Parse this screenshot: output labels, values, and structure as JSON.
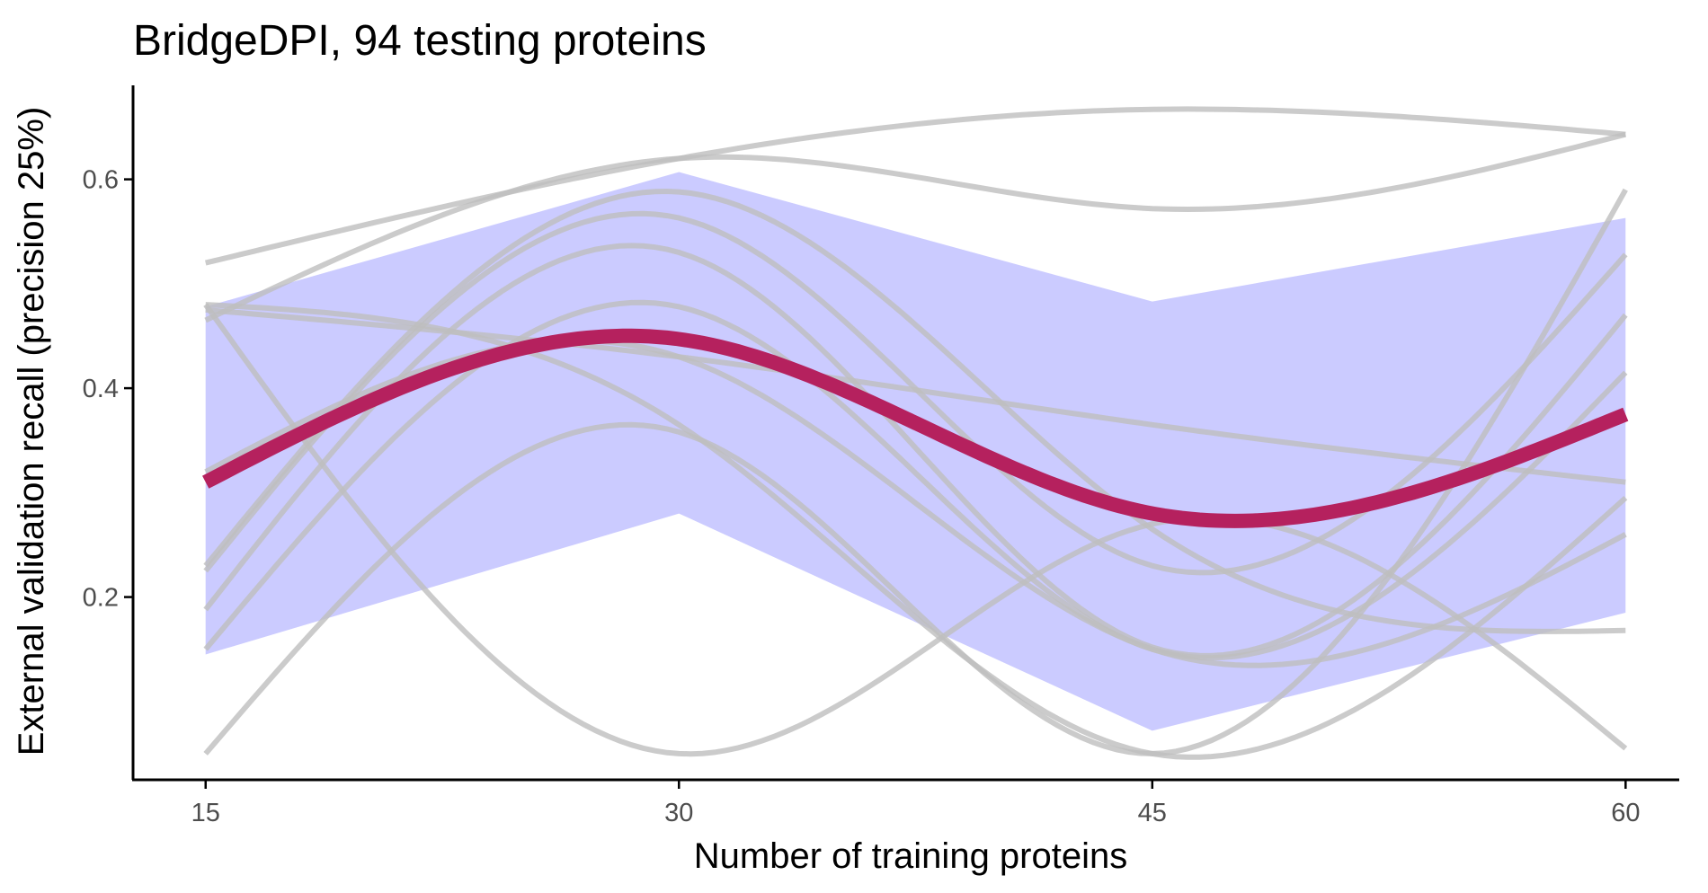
{
  "chart_data": {
    "type": "line",
    "title": "BridgeDPI, 94 testing proteins",
    "xlabel": "Number of training proteins",
    "ylabel": "External validation recall (precision 25%)",
    "x": [
      15,
      30,
      45,
      60
    ],
    "xticks": [
      15,
      30,
      45,
      60
    ],
    "yticks": [
      0.2,
      0.4,
      0.6
    ],
    "ytick_labels": [
      "0.2",
      "0.4",
      "0.6"
    ],
    "xlim": [
      12.7,
      61.7
    ],
    "ylim": [
      0.025,
      0.69
    ],
    "grid": false,
    "legend": "none",
    "colors": {
      "individual_runs": "#bebebe",
      "band_fill": "#6b6bff",
      "mean_line": "#b5215e"
    },
    "series": [
      {
        "values": [
          0.52,
          0.62,
          0.667,
          0.643
        ]
      },
      {
        "values": [
          0.465,
          0.62,
          0.572,
          0.643
        ]
      },
      {
        "values": [
          0.48,
          0.05,
          0.27,
          0.055
        ]
      },
      {
        "values": [
          0.05,
          0.358,
          0.05,
          0.59
        ]
      },
      {
        "values": [
          0.48,
          0.365,
          0.05,
          0.295
        ]
      },
      {
        "values": [
          0.475,
          0.43,
          0.365,
          0.31
        ]
      },
      {
        "values": [
          0.23,
          0.588,
          0.265,
          0.168
        ]
      },
      {
        "values": [
          0.225,
          0.563,
          0.23,
          0.528
        ]
      },
      {
        "values": [
          0.188,
          0.53,
          0.152,
          0.47
        ]
      },
      {
        "values": [
          0.15,
          0.478,
          0.15,
          0.415
        ]
      },
      {
        "values": [
          0.32,
          0.43,
          0.15,
          0.26
        ]
      }
    ],
    "mean": {
      "values": [
        0.31,
        0.447,
        0.28,
        0.375
      ]
    },
    "band": {
      "lower": [
        0.145,
        0.28,
        0.072,
        0.185
      ],
      "upper": [
        0.478,
        0.607,
        0.483,
        0.563
      ]
    }
  }
}
